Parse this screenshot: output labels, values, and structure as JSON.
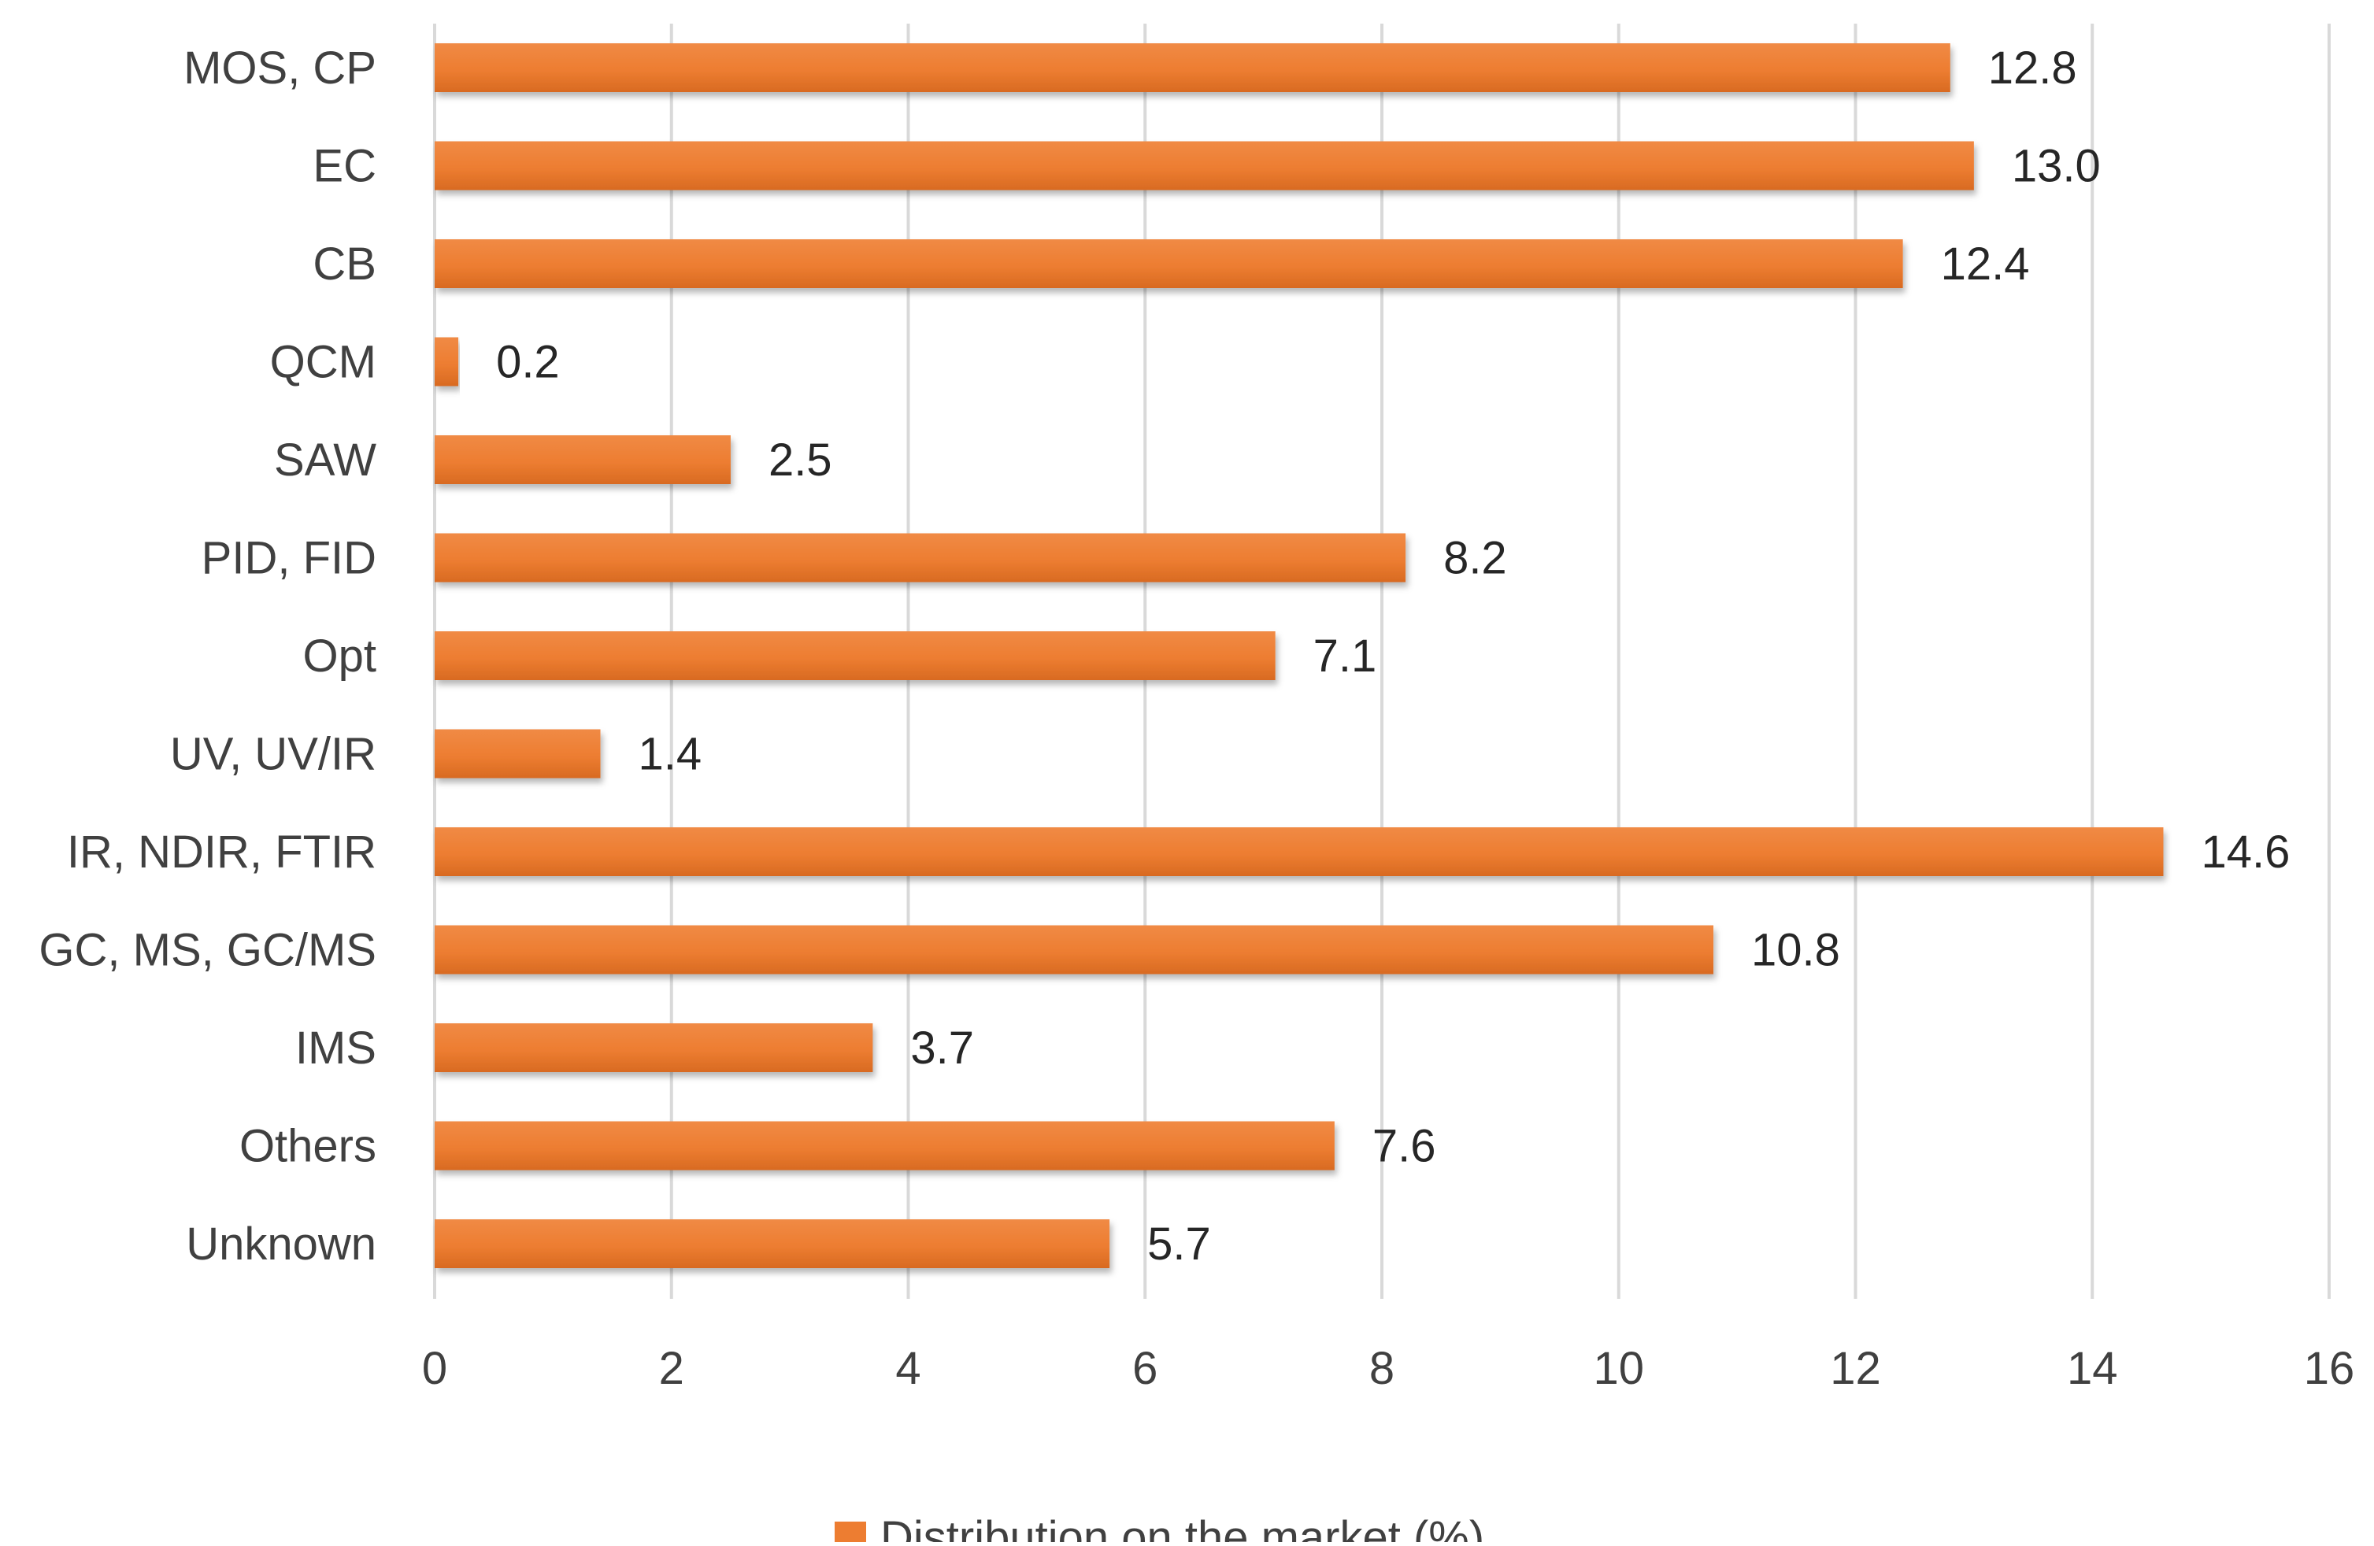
{
  "chart_data": {
    "type": "bar",
    "orientation": "horizontal",
    "categories": [
      "MOS, CP",
      "EC",
      "CB",
      "QCM",
      "SAW",
      "PID, FID",
      "Opt",
      "UV, UV/IR",
      "IR, NDIR, FTIR",
      "GC, MS, GC/MS",
      "IMS",
      "Others",
      "Unknown"
    ],
    "series": [
      {
        "name": "Distribution on the market (%)",
        "values": [
          12.8,
          13.0,
          12.4,
          0.2,
          2.5,
          8.2,
          7.1,
          1.4,
          14.6,
          10.8,
          3.7,
          7.6,
          5.7
        ],
        "labels": [
          "12.8",
          "13.0",
          "12.4",
          "0.2",
          "2.5",
          "8.2",
          "7.1",
          "1.4",
          "14.6",
          "10.8",
          "3.7",
          "7.6",
          "5.7"
        ],
        "color": "#ed7d31"
      }
    ],
    "xlim": [
      0,
      16
    ],
    "xticks": [
      0,
      2,
      4,
      6,
      8,
      10,
      12,
      14,
      16
    ],
    "xtick_labels": [
      "0",
      "2",
      "4",
      "6",
      "8",
      "10",
      "12",
      "14",
      "16"
    ],
    "grid": true,
    "legend_position": "bottom",
    "title": "",
    "xlabel": "",
    "ylabel": ""
  }
}
